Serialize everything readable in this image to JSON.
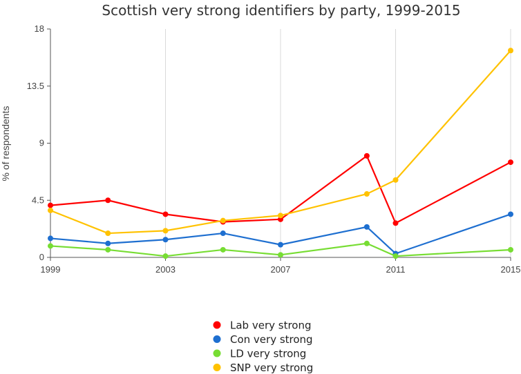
{
  "chart_data": {
    "type": "line",
    "title": "Scottish very strong identifiers by party, 1999-2015",
    "xlabel": "",
    "ylabel": "% of respondents",
    "xlim": [
      1999,
      2015
    ],
    "ylim": [
      0,
      18
    ],
    "x_ticks": [
      "1999",
      "2003",
      "2007",
      "2011",
      "2015"
    ],
    "y_ticks": [
      "0",
      "4.5",
      "9",
      "13.5",
      "18"
    ],
    "grid": "vertical",
    "legend_position": "bottom-center",
    "x": [
      1999,
      2001,
      2003,
      2005,
      2007,
      2010,
      2011,
      2015
    ],
    "series": [
      {
        "name": "Lab very strong",
        "color": "#ff0000",
        "values": [
          4.1,
          4.5,
          3.4,
          2.8,
          3.0,
          8.0,
          2.7,
          7.5
        ]
      },
      {
        "name": "Con very strong",
        "color": "#1e6fd0",
        "values": [
          1.5,
          1.1,
          1.4,
          1.9,
          1.0,
          2.4,
          0.3,
          3.4
        ]
      },
      {
        "name": "LD very strong",
        "color": "#77dd33",
        "values": [
          0.9,
          0.6,
          0.1,
          0.6,
          0.2,
          1.1,
          0.1,
          0.6
        ]
      },
      {
        "name": "SNP very strong",
        "color": "#ffc200",
        "values": [
          3.7,
          1.9,
          2.1,
          2.9,
          3.3,
          5.0,
          6.1,
          16.3
        ]
      }
    ]
  }
}
